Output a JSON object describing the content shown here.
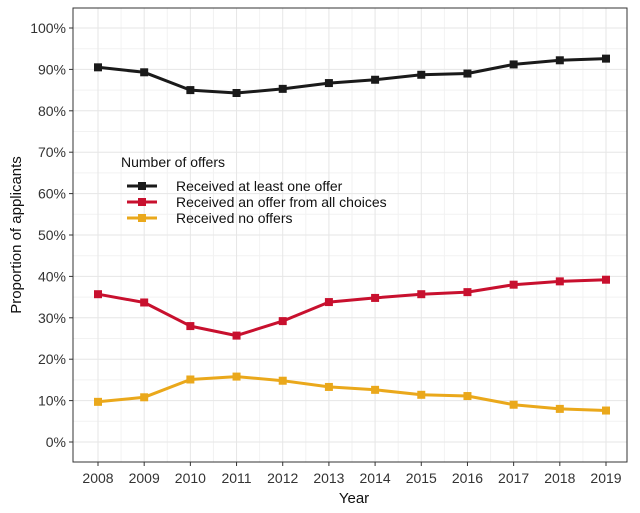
{
  "chart_data": {
    "type": "line",
    "xlabel": "Year",
    "ylabel": "Proportion of applicants",
    "x": [
      "2008",
      "2009",
      "2010",
      "2011",
      "2012",
      "2013",
      "2014",
      "2015",
      "2016",
      "2017",
      "2018",
      "2019"
    ],
    "ylim": [
      0,
      100
    ],
    "yticks": [
      0,
      10,
      20,
      30,
      40,
      50,
      60,
      70,
      80,
      90,
      100
    ],
    "ytick_labels": [
      "0%",
      "10%",
      "20%",
      "30%",
      "40%",
      "50%",
      "60%",
      "70%",
      "80%",
      "90%",
      "100%"
    ],
    "grid": true,
    "legend": {
      "title": "Number of offers",
      "placement": "center-left"
    },
    "series": [
      {
        "name": "Received at least one offer",
        "color": "#1a1a1a",
        "values": [
          90.5,
          89.3,
          85.0,
          84.3,
          85.3,
          86.7,
          87.5,
          88.7,
          89.0,
          91.2,
          92.2,
          92.6
        ]
      },
      {
        "name": "Received an offer from all choices",
        "color": "#c8102e",
        "values": [
          35.7,
          33.7,
          28.0,
          25.7,
          29.2,
          33.8,
          34.8,
          35.7,
          36.2,
          38.0,
          38.8,
          39.2
        ]
      },
      {
        "name": "Received no offers",
        "color": "#eaa81b",
        "values": [
          9.7,
          10.8,
          15.1,
          15.8,
          14.8,
          13.3,
          12.6,
          11.4,
          11.1,
          9.0,
          8.0,
          7.6
        ]
      }
    ]
  }
}
